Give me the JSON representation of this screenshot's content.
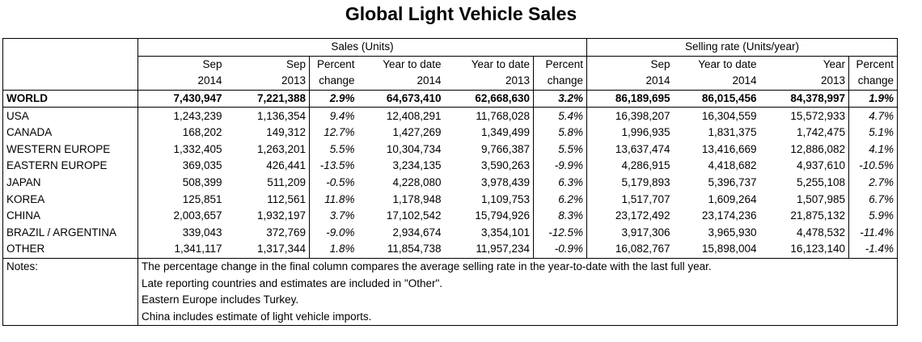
{
  "title": "Global Light Vehicle Sales",
  "group_headers": {
    "sales": "Sales (Units)",
    "selling_rate": "Selling rate (Units/year)"
  },
  "column_headers": [
    {
      "line1": "Sep",
      "line2": "2014"
    },
    {
      "line1": "Sep",
      "line2": "2013"
    },
    {
      "line1": "Percent",
      "line2": "change"
    },
    {
      "line1": "Year to date",
      "line2": "2014"
    },
    {
      "line1": "Year to date",
      "line2": "2013"
    },
    {
      "line1": "Percent",
      "line2": "change"
    },
    {
      "line1": "Sep",
      "line2": "2014"
    },
    {
      "line1": "Year to date",
      "line2": "2014"
    },
    {
      "line1": "Year",
      "line2": "2013"
    },
    {
      "line1": "Percent",
      "line2": "change"
    }
  ],
  "chart_data": {
    "type": "table",
    "title": "Global Light Vehicle Sales",
    "rows": [
      {
        "region": "WORLD",
        "values": [
          "7,430,947",
          "7,221,388",
          "2.9%",
          "64,673,410",
          "62,668,630",
          "3.2%",
          "86,189,695",
          "86,015,456",
          "84,378,997",
          "1.9%"
        ]
      },
      {
        "region": "USA",
        "values": [
          "1,243,239",
          "1,136,354",
          "9.4%",
          "12,408,291",
          "11,768,028",
          "5.4%",
          "16,398,207",
          "16,304,559",
          "15,572,933",
          "4.7%"
        ]
      },
      {
        "region": "CANADA",
        "values": [
          "168,202",
          "149,312",
          "12.7%",
          "1,427,269",
          "1,349,499",
          "5.8%",
          "1,996,935",
          "1,831,375",
          "1,742,475",
          "5.1%"
        ]
      },
      {
        "region": "WESTERN EUROPE",
        "values": [
          "1,332,405",
          "1,263,201",
          "5.5%",
          "10,304,734",
          "9,766,387",
          "5.5%",
          "13,637,474",
          "13,416,669",
          "12,886,082",
          "4.1%"
        ]
      },
      {
        "region": "EASTERN EUROPE",
        "values": [
          "369,035",
          "426,441",
          "-13.5%",
          "3,234,135",
          "3,590,263",
          "-9.9%",
          "4,286,915",
          "4,418,682",
          "4,937,610",
          "-10.5%"
        ]
      },
      {
        "region": "JAPAN",
        "values": [
          "508,399",
          "511,209",
          "-0.5%",
          "4,228,080",
          "3,978,439",
          "6.3%",
          "5,179,893",
          "5,396,737",
          "5,255,108",
          "2.7%"
        ]
      },
      {
        "region": "KOREA",
        "values": [
          "125,851",
          "112,561",
          "11.8%",
          "1,178,948",
          "1,109,753",
          "6.2%",
          "1,517,707",
          "1,609,264",
          "1,507,985",
          "6.7%"
        ]
      },
      {
        "region": "CHINA",
        "values": [
          "2,003,657",
          "1,932,197",
          "3.7%",
          "17,102,542",
          "15,794,926",
          "8.3%",
          "23,172,492",
          "23,174,236",
          "21,875,132",
          "5.9%"
        ]
      },
      {
        "region": "BRAZIL / ARGENTINA",
        "values": [
          "339,043",
          "372,769",
          "-9.0%",
          "2,934,674",
          "3,354,101",
          "-12.5%",
          "3,917,306",
          "3,965,930",
          "4,478,532",
          "-11.4%"
        ]
      },
      {
        "region": "OTHER",
        "values": [
          "1,341,117",
          "1,317,344",
          "1.8%",
          "11,854,738",
          "11,957,234",
          "-0.9%",
          "16,082,767",
          "15,898,004",
          "16,123,140",
          "-1.4%"
        ]
      }
    ]
  },
  "notes": {
    "label": "Notes:",
    "lines": [
      "The percentage change in the final column compares the average selling rate in the year-to-date with the last full year.",
      "Late reporting countries and estimates are included in \"Other\".",
      "Eastern Europe includes Turkey.",
      "China includes estimate of light vehicle imports."
    ]
  }
}
